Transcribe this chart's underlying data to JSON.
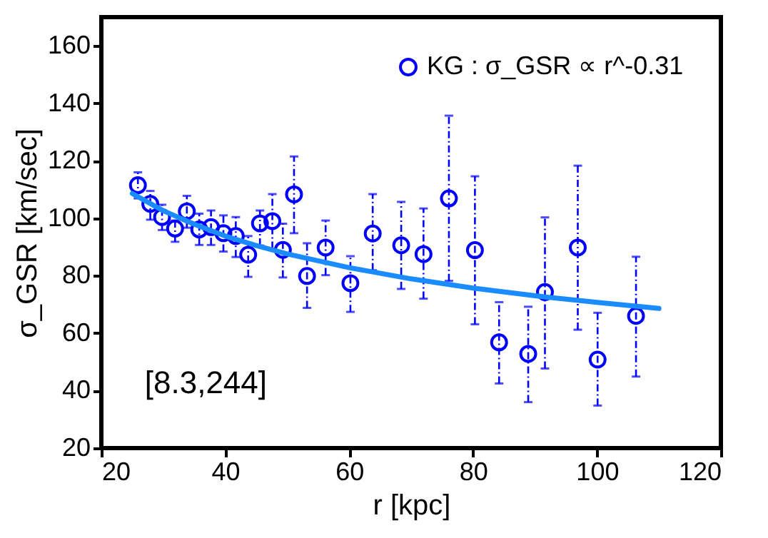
{
  "chart_data": {
    "type": "scatter",
    "xlabel": "r [kpc]",
    "ylabel": "σ_GSR [km/sec]",
    "xlim": [
      20,
      120
    ],
    "xticks": [
      20,
      40,
      60,
      80,
      100,
      120
    ],
    "ylim": [
      20,
      170
    ],
    "yticks": [
      20,
      40,
      60,
      80,
      100,
      120,
      140,
      160
    ],
    "grid": false,
    "legend": "top right",
    "marker": "circle",
    "annotations": [
      "[8.3,244]"
    ],
    "series": [
      {
        "name": "KG : σ_GSR ∝ r^-0.31",
        "color": "#0000ff",
        "x": [
          25.9,
          27.9,
          29.8,
          31.9,
          33.8,
          35.8,
          37.7,
          39.7,
          41.7,
          43.7,
          45.6,
          47.6,
          49.3,
          51.1,
          53.2,
          56.2,
          60.2,
          63.8,
          68.4,
          72,
          76.1,
          80.3,
          84.2,
          88.9,
          91.6,
          96.9,
          100.1,
          106.3
        ],
        "values": [
          111.5,
          105,
          100.4,
          96.4,
          102.4,
          96.1,
          96.9,
          94.8,
          93.8,
          87.3,
          98.2,
          99,
          89,
          108.3,
          79.9,
          89.8,
          77.4,
          94.7,
          90.6,
          87.5,
          106.9,
          88.9,
          56.8,
          52.8,
          74.3,
          89.8,
          50.8,
          66
        ],
        "errors": [
          [
            106.9,
            116
          ],
          [
            99.5,
            109.5
          ],
          [
            95.9,
            104.7
          ],
          [
            91.8,
            99.2
          ],
          [
            96.7,
            107.8
          ],
          [
            90.7,
            101.6
          ],
          [
            90.7,
            102.7
          ],
          [
            88.4,
            101
          ],
          [
            86.5,
            100.4
          ],
          [
            79.6,
            93.8
          ],
          [
            90.5,
            102.7
          ],
          [
            89.4,
            108.4
          ],
          [
            79.4,
            98.1
          ],
          [
            94.8,
            121.5
          ],
          [
            68.8,
            91.3
          ],
          [
            80.2,
            99.2
          ],
          [
            67.4,
            86.8
          ],
          [
            81.9,
            108.4
          ],
          [
            75.4,
            105.7
          ],
          [
            72,
            103.4
          ],
          [
            78.2,
            135.7
          ],
          [
            63.1,
            114.6
          ],
          [
            42.5,
            70.8
          ],
          [
            36,
            69.2
          ],
          [
            47.7,
            100.3
          ],
          [
            61.2,
            118.3
          ],
          [
            34.8,
            67.1
          ],
          [
            44.9,
            86.6
          ]
        ]
      },
      {
        "color": "#1a8cff",
        "type": "line",
        "line_style": "solid",
        "marker": "none",
        "x": [
          25,
          30,
          35,
          40,
          45,
          50,
          60,
          70,
          80,
          90,
          100,
          110
        ],
        "values": [
          108.6,
          102.6,
          97.9,
          93.8,
          90.5,
          87.6,
          82.8,
          78.9,
          75.7,
          73,
          70.7,
          68.6
        ]
      }
    ]
  }
}
